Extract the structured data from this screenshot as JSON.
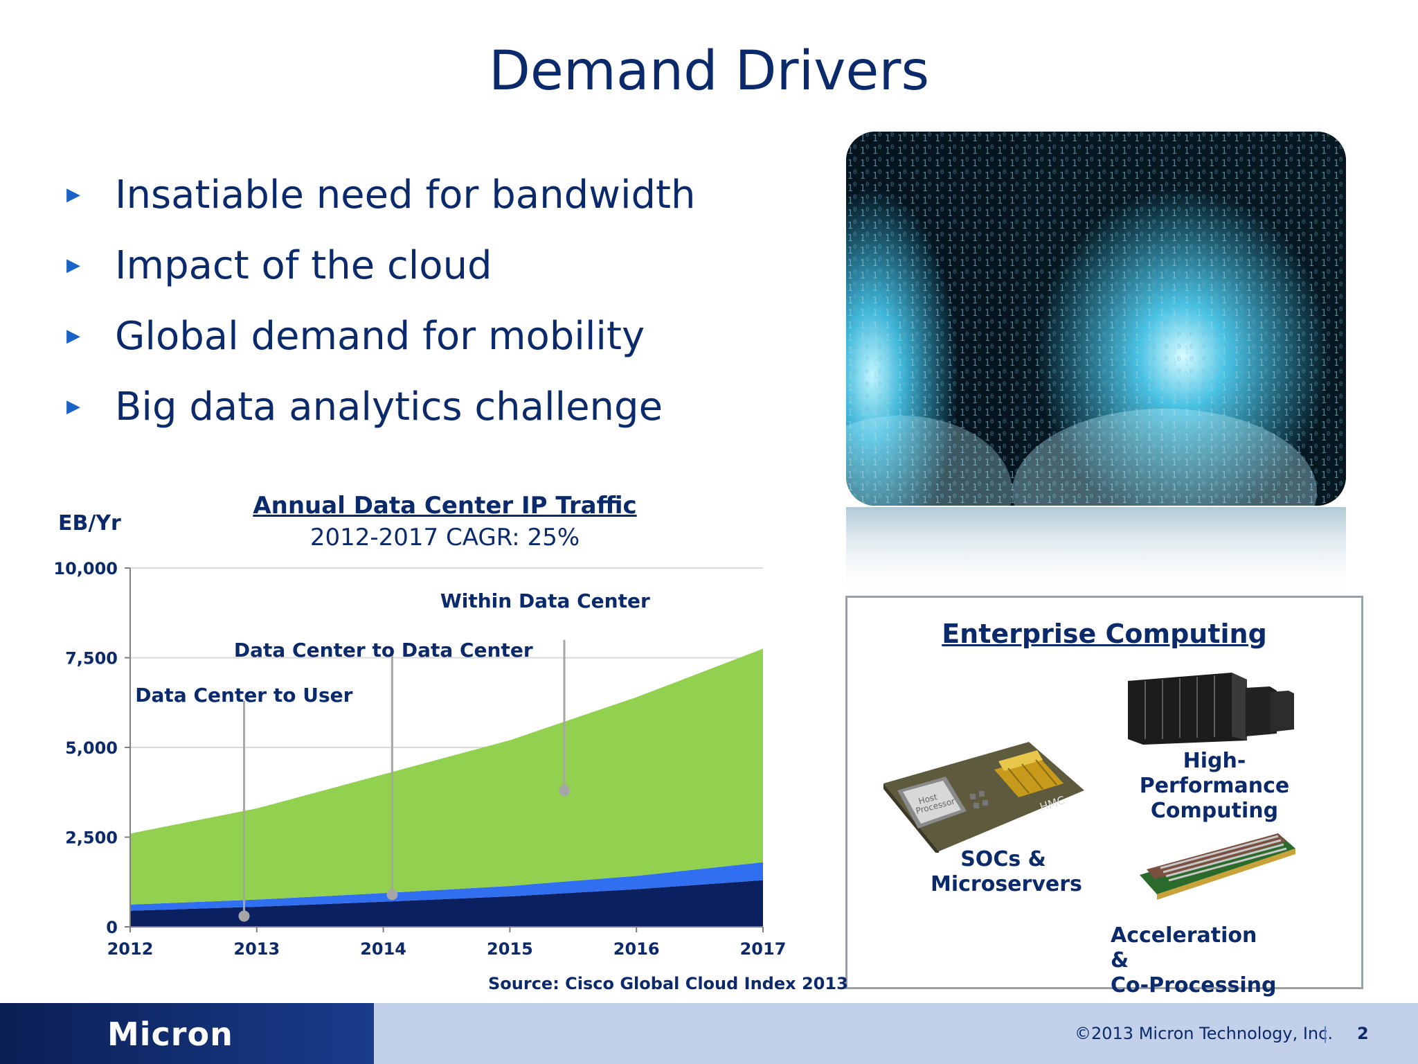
{
  "slide": {
    "title": "Demand Drivers",
    "bullets": [
      "Insatiable need for bandwidth",
      "Impact of the cloud",
      "Global demand for mobility",
      "Big data analytics challenge"
    ]
  },
  "chart_data": {
    "type": "area",
    "stacked": true,
    "title": "Annual Data Center IP Traffic",
    "subtitle": "2012-2017 CAGR:  25%",
    "ylabel": "EB/Yr",
    "xlabel": "",
    "x": [
      2012,
      2013,
      2014,
      2015,
      2016,
      2017
    ],
    "x_tick_labels": [
      "2012",
      "2013",
      "2014",
      "2015",
      "2016",
      "2017"
    ],
    "y_tick_labels": [
      "0",
      "2,500",
      "5,000",
      "7,500",
      "10,000"
    ],
    "y_ticks": [
      0,
      2500,
      5000,
      7500,
      10000
    ],
    "ylim": [
      0,
      10000
    ],
    "grid": true,
    "series": [
      {
        "name": "Data Center to User",
        "values": [
          450,
          560,
          700,
          850,
          1050,
          1300
        ],
        "color": "#0b2060"
      },
      {
        "name": "Data Center to Data Center",
        "values": [
          170,
          200,
          240,
          290,
          370,
          500
        ],
        "color": "#2f6ff0"
      },
      {
        "name": "Within Data Center",
        "values": [
          1980,
          2540,
          3310,
          4060,
          4980,
          5950
        ],
        "color": "#92d050"
      }
    ],
    "annotations": [
      {
        "text": "Within Data Center",
        "x": 2015.43,
        "y": 3800
      },
      {
        "text": "Data Center to Data Center",
        "x": 2014.07,
        "y": 900
      },
      {
        "text": "Data Center to User",
        "x": 2012.9,
        "y": 300
      }
    ],
    "source": "Source: Cisco Global Cloud Index 2013"
  },
  "enterprise": {
    "title": "Enterprise Computing",
    "items": [
      {
        "label_line1": "High-Performance",
        "label_line2": "Computing"
      },
      {
        "label_line1": "SOCs &",
        "label_line2": "Microservers"
      },
      {
        "label_line1": "Acceleration &",
        "label_line2": "Co-Processing"
      }
    ],
    "chip_text_1": "Host",
    "chip_text_2": "Processor",
    "chip_text_3": "HMC"
  },
  "footer": {
    "logo": "Micron",
    "copyright": "©2013 Micron Technology, Inc.",
    "separator": "|",
    "page_number": "2"
  }
}
